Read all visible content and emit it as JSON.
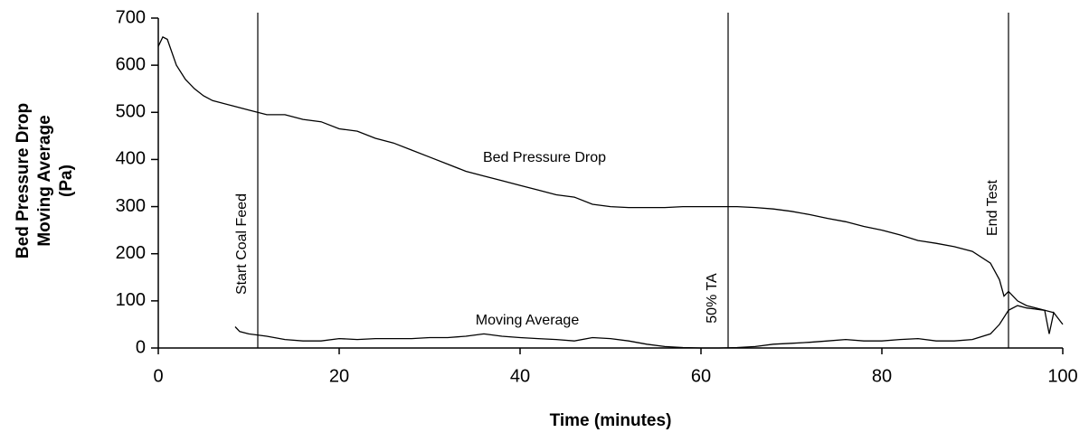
{
  "chart_data": {
    "type": "line",
    "xlabel": "Time (minutes)",
    "ylabel": [
      "Bed Pressure Drop",
      "Moving Average",
      "(Pa)"
    ],
    "xlim": [
      0,
      100
    ],
    "xticks": [
      0,
      20,
      40,
      60,
      80,
      100
    ],
    "ylim": [
      0,
      700
    ],
    "yticks": [
      0,
      100,
      200,
      300,
      400,
      500,
      600,
      700
    ],
    "series": [
      {
        "name": "Bed Pressure Drop",
        "color": "#000000",
        "x": [
          0,
          0.5,
          1,
          2,
          3,
          4,
          5,
          6,
          8,
          10,
          12,
          14,
          16,
          18,
          20,
          22,
          24,
          26,
          28,
          30,
          32,
          34,
          36,
          38,
          40,
          42,
          44,
          46,
          48,
          50,
          52,
          54,
          56,
          58,
          60,
          62,
          64,
          66,
          68,
          70,
          72,
          74,
          76,
          78,
          80,
          82,
          84,
          86,
          88,
          90,
          92,
          93,
          93.5,
          94,
          95,
          96,
          98,
          99
        ],
        "values": [
          640,
          660,
          655,
          600,
          570,
          550,
          535,
          525,
          515,
          505,
          495,
          495,
          485,
          480,
          465,
          460,
          445,
          435,
          420,
          405,
          390,
          375,
          365,
          355,
          345,
          335,
          325,
          320,
          305,
          300,
          298,
          298,
          298,
          300,
          300,
          300,
          300,
          298,
          295,
          290,
          283,
          275,
          268,
          258,
          250,
          240,
          228,
          222,
          215,
          205,
          180,
          145,
          110,
          120,
          100,
          90,
          80,
          75
        ]
      },
      {
        "name": "Moving Average",
        "color": "#000000",
        "x": [
          8.5,
          9,
          10,
          12,
          14,
          16,
          18,
          20,
          22,
          24,
          26,
          28,
          30,
          32,
          34,
          36,
          38,
          40,
          42,
          44,
          46,
          48,
          50,
          52,
          54,
          56,
          58,
          60,
          62,
          64,
          66,
          68,
          70,
          72,
          74,
          76,
          78,
          80,
          82,
          84,
          86,
          88,
          90,
          92,
          93,
          94,
          95,
          96,
          98,
          98.5,
          99,
          100
        ],
        "values": [
          45,
          35,
          30,
          25,
          18,
          15,
          15,
          20,
          18,
          20,
          20,
          20,
          22,
          22,
          25,
          30,
          25,
          22,
          20,
          18,
          15,
          22,
          20,
          15,
          8,
          3,
          1,
          0,
          0,
          1,
          3,
          8,
          10,
          12,
          15,
          18,
          15,
          15,
          18,
          20,
          15,
          15,
          18,
          30,
          50,
          80,
          90,
          85,
          80,
          30,
          75,
          50
        ]
      }
    ],
    "annotations": [
      {
        "x": 11,
        "label": "Start Coal Feed"
      },
      {
        "x": 63,
        "label": "50% TA"
      },
      {
        "x": 94,
        "label": "End Test"
      }
    ]
  }
}
